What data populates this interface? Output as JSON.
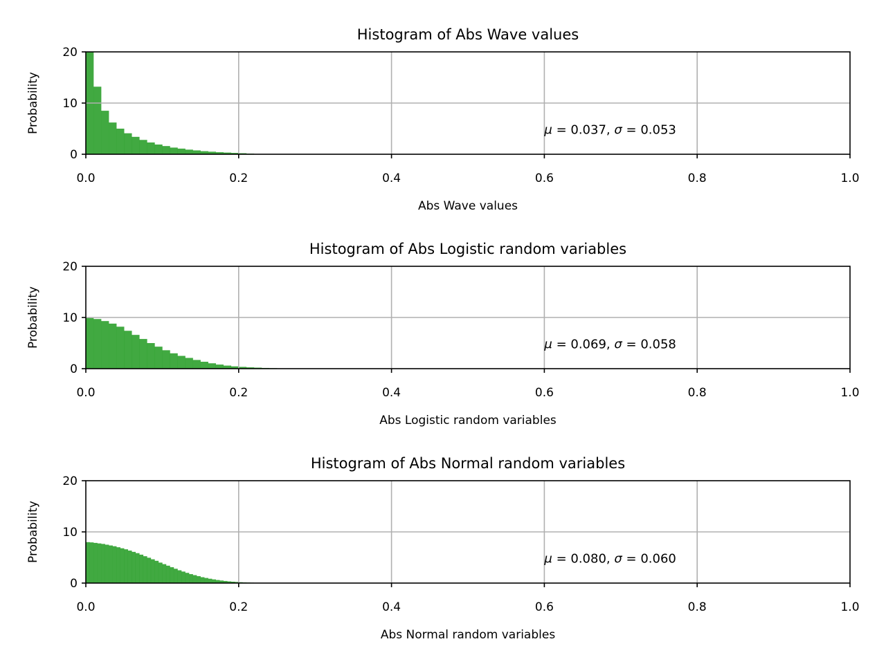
{
  "chart_data": [
    {
      "type": "bar",
      "title": "Histogram of Abs Wave values",
      "xlabel": "Abs Wave values",
      "ylabel": "Probability",
      "xlim": [
        0,
        1.0
      ],
      "ylim": [
        0,
        20
      ],
      "grid": true,
      "xticks": [
        "0.0",
        "0.2",
        "0.4",
        "0.6",
        "0.8",
        "1.0"
      ],
      "yticks": [
        "0",
        "10",
        "20"
      ],
      "annotation": {
        "mu": "0.037",
        "sigma": "0.053",
        "x": 0.6,
        "y": 4
      },
      "bar_color": "#2ca02c",
      "bin_width": 0.01,
      "bin_start": 0.0,
      "values": [
        20.5,
        13.2,
        8.5,
        6.2,
        5.0,
        4.1,
        3.4,
        2.8,
        2.3,
        1.9,
        1.6,
        1.3,
        1.1,
        0.9,
        0.75,
        0.6,
        0.5,
        0.4,
        0.33,
        0.26,
        0.2,
        0.12,
        0.06,
        0.03,
        0.01
      ]
    },
    {
      "type": "bar",
      "title": "Histogram of Abs Logistic random variables",
      "xlabel": "Abs Logistic random variables",
      "ylabel": "Probability",
      "xlim": [
        0,
        1.0
      ],
      "ylim": [
        0,
        20
      ],
      "grid": true,
      "xticks": [
        "0.0",
        "0.2",
        "0.4",
        "0.6",
        "0.8",
        "1.0"
      ],
      "yticks": [
        "0",
        "10",
        "20"
      ],
      "annotation": {
        "mu": "0.069",
        "sigma": "0.058",
        "x": 0.6,
        "y": 4
      },
      "bar_color": "#2ca02c",
      "bin_width": 0.01,
      "bin_start": 0.0,
      "values": [
        9.9,
        9.7,
        9.3,
        8.8,
        8.2,
        7.4,
        6.6,
        5.8,
        5.0,
        4.3,
        3.6,
        3.0,
        2.5,
        2.1,
        1.7,
        1.35,
        1.05,
        0.8,
        0.6,
        0.45,
        0.35,
        0.26,
        0.2,
        0.14,
        0.1,
        0.06,
        0.04,
        0.02,
        0.01
      ]
    },
    {
      "type": "bar",
      "title": "Histogram of Abs Normal random variables",
      "xlabel": "Abs Normal random variables",
      "ylabel": "Probability",
      "xlim": [
        0,
        1.0
      ],
      "ylim": [
        0,
        20
      ],
      "grid": true,
      "xticks": [
        "0.0",
        "0.2",
        "0.4",
        "0.6",
        "0.8",
        "1.0"
      ],
      "yticks": [
        "0",
        "10",
        "20"
      ],
      "annotation": {
        "mu": "0.080",
        "sigma": "0.060",
        "x": 0.6,
        "y": 4
      },
      "bar_color": "#2ca02c",
      "bin_width": 0.005,
      "bin_start": 0.0,
      "values": [
        8.0,
        7.95,
        7.85,
        7.75,
        7.65,
        7.5,
        7.35,
        7.2,
        7.0,
        6.8,
        6.6,
        6.35,
        6.1,
        5.85,
        5.55,
        5.25,
        4.95,
        4.65,
        4.35,
        4.0,
        3.7,
        3.4,
        3.1,
        2.8,
        2.5,
        2.25,
        2.0,
        1.75,
        1.55,
        1.35,
        1.15,
        1.0,
        0.85,
        0.72,
        0.6,
        0.5,
        0.41,
        0.33,
        0.27,
        0.22,
        0.17,
        0.13,
        0.1,
        0.08,
        0.06,
        0.04,
        0.03,
        0.02,
        0.015,
        0.01,
        0.005,
        0.003,
        0.002
      ]
    }
  ]
}
